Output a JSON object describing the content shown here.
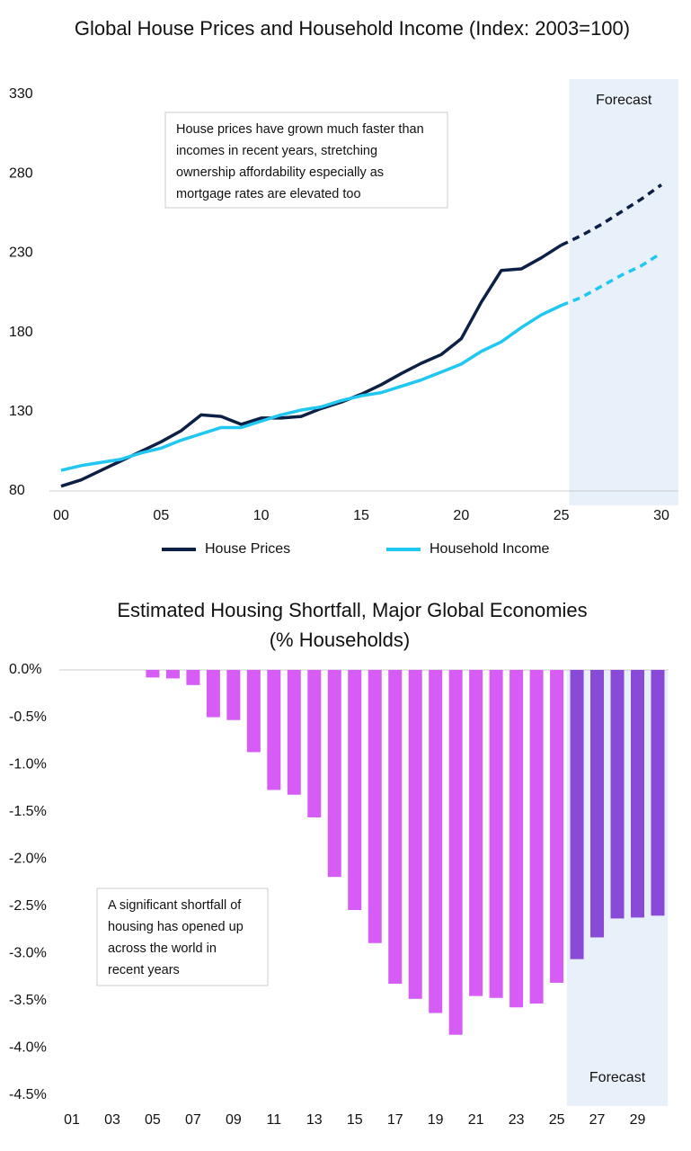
{
  "chart_data": [
    {
      "type": "line",
      "title": "Global House Prices and Household Income (Index: 2003=100)",
      "annotation": [
        "House prices have grown much faster than",
        "incomes in recent years, stretching",
        "ownership affordability especially as",
        "mortgage rates are elevated too"
      ],
      "forecast": {
        "label": "Forecast",
        "xlim": [
          25.4,
          30.85
        ],
        "color": "#e8f1fa"
      },
      "x": [
        0,
        1,
        2,
        3,
        4,
        5,
        6,
        7,
        8,
        9,
        10,
        11,
        12,
        13,
        14,
        15,
        16,
        17,
        18,
        19,
        20,
        21,
        22,
        23,
        24,
        25,
        26,
        27,
        28,
        29,
        30
      ],
      "series": [
        {
          "name": "House Prices",
          "color": "#0c1f45",
          "values": [
            83,
            87,
            93,
            99,
            105,
            111,
            118,
            128,
            127,
            122,
            126,
            126,
            127,
            132,
            136,
            141,
            147,
            154,
            160.5,
            166,
            176,
            199,
            219,
            220,
            227,
            235,
            241,
            248,
            256,
            264,
            273
          ]
        },
        {
          "name": "Household Income",
          "color": "#1fc7f2",
          "values": [
            93,
            96,
            98,
            100,
            104,
            107,
            112,
            116,
            120,
            120,
            124,
            128,
            131,
            133,
            137,
            140,
            142,
            146,
            150,
            155,
            160,
            168,
            174,
            183,
            191,
            197,
            202,
            209,
            216,
            222,
            230
          ]
        }
      ],
      "xlim": [
        0,
        30
      ],
      "xticks": [
        {
          "value": 0,
          "label": "00"
        },
        {
          "value": 5,
          "label": "05"
        },
        10,
        15,
        20,
        25,
        30
      ],
      "ylim": [
        80,
        330
      ],
      "yticks": [
        80,
        130,
        180,
        230,
        280,
        330
      ],
      "grid": false,
      "legend": "bottom"
    },
    {
      "type": "bar",
      "title": "Estimated Housing Shortfall, Major Global Economies",
      "subtitle": "(% Households)",
      "annotation": [
        "A significant shortfall of",
        "housing has opened up",
        "across the world in",
        "recent years"
      ],
      "forecast": {
        "label": "Forecast",
        "xlim": [
          25.5,
          30.5
        ],
        "color": "#e8f1fa",
        "bar_color": "#8a4ad8"
      },
      "color": "#d65cf5",
      "x": [
        1,
        2,
        3,
        4,
        5,
        6,
        7,
        8,
        9,
        10,
        11,
        12,
        13,
        14,
        15,
        16,
        17,
        18,
        19,
        20,
        21,
        22,
        23,
        24,
        25,
        26,
        27,
        28,
        29,
        30
      ],
      "values": [
        0,
        0,
        0,
        0,
        -0.08,
        -0.09,
        -0.16,
        -0.5,
        -0.53,
        -0.87,
        -1.27,
        -1.32,
        -1.56,
        -2.19,
        -2.54,
        -2.89,
        -3.32,
        -3.48,
        -3.63,
        -3.86,
        -3.45,
        -3.47,
        -3.57,
        -3.53,
        -3.31,
        -3.06,
        -2.83,
        -2.63,
        -2.62,
        -2.6
      ],
      "xlim": [
        1,
        30
      ],
      "xticks": [
        {
          "value": 1,
          "label": "01"
        },
        {
          "value": 3,
          "label": "03"
        },
        {
          "value": 5,
          "label": "05"
        },
        {
          "value": 7,
          "label": "07"
        },
        {
          "value": 9,
          "label": "09"
        },
        11,
        13,
        15,
        17,
        19,
        21,
        23,
        25,
        27,
        29
      ],
      "ylim": [
        -4.5,
        0
      ],
      "yticks": [
        {
          "value": 0,
          "label": "0.0%"
        },
        {
          "value": -0.5,
          "label": "-0.5%"
        },
        {
          "value": -1,
          "label": "-1.0%"
        },
        {
          "value": -1.5,
          "label": "-1.5%"
        },
        {
          "value": -2,
          "label": "-2.0%"
        },
        {
          "value": -2.5,
          "label": "-2.5%"
        },
        {
          "value": -3,
          "label": "-3.0%"
        },
        {
          "value": -3.5,
          "label": "-3.5%"
        },
        {
          "value": -4,
          "label": "-4.0%"
        },
        {
          "value": -4.5,
          "label": "-4.5%"
        }
      ],
      "grid": false
    }
  ]
}
